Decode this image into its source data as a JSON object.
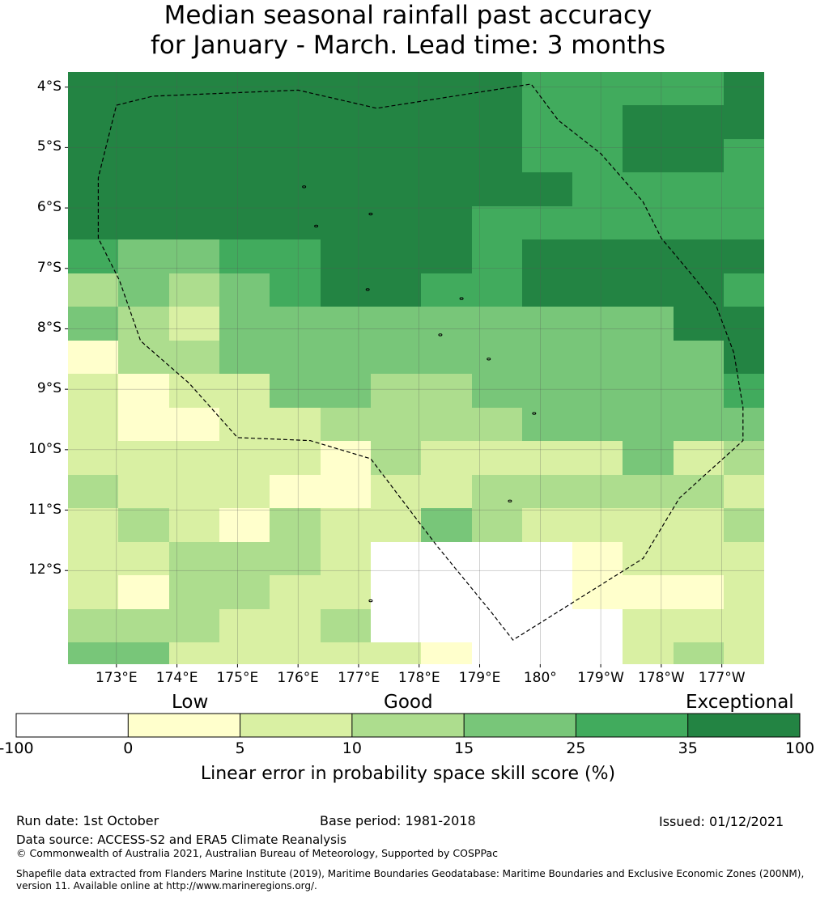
{
  "title": {
    "line1": "Median seasonal rainfall past accuracy",
    "line2": "for January - March. Lead time: 3 months"
  },
  "map": {
    "lat_labels": [
      "4°S",
      "5°S",
      "6°S",
      "7°S",
      "8°S",
      "9°S",
      "10°S",
      "11°S",
      "12°S"
    ],
    "lat_values": [
      -4,
      -5,
      -6,
      -7,
      -8,
      -9,
      -10,
      -11,
      -12
    ],
    "lon_labels": [
      "173°E",
      "174°E",
      "175°E",
      "176°E",
      "177°E",
      "178°E",
      "179°E",
      "180°",
      "179°W",
      "178°W",
      "177°W"
    ],
    "lon_values": [
      173,
      174,
      175,
      176,
      177,
      178,
      179,
      180,
      181,
      182,
      183
    ],
    "extent": {
      "lon_min": 172.2,
      "lon_max": 183.7,
      "lat_max": -3.75,
      "lat_min": -13.55
    },
    "cell_grid": {
      "lon0": 172.2,
      "lat0": -3.75,
      "dlon": 0.8333,
      "dlat": 0.5555,
      "cols": 14,
      "rows": 18,
      "class_rows": [
        "66666666655556",
        "66666666655666",
        "66666666655665",
        "66666666665555",
        "66666666555555",
        "54455666566666",
        "34345665566665",
        "43244444444466",
        "13344444444446",
        "21224433444445",
        "21122333344444",
        "22222132222423",
        "32221122333332",
        "23213224322223",
        "22333200001222",
        "21332200001112",
        "33322300000222",
        "44222221000232"
      ]
    },
    "eez_boundary_lonlat": [
      [
        173.0,
        -4.3
      ],
      [
        173.6,
        -4.15
      ],
      [
        176.0,
        -4.05
      ],
      [
        177.3,
        -4.35
      ],
      [
        179.85,
        -3.95
      ],
      [
        180.3,
        -4.55
      ],
      [
        181.0,
        -5.1
      ],
      [
        181.7,
        -5.9
      ],
      [
        182.0,
        -6.5
      ],
      [
        182.5,
        -7.1
      ],
      [
        182.9,
        -7.6
      ],
      [
        183.2,
        -8.4
      ],
      [
        183.35,
        -9.3
      ],
      [
        183.35,
        -9.85
      ],
      [
        182.3,
        -10.8
      ],
      [
        181.7,
        -11.8
      ],
      [
        179.55,
        -13.15
      ],
      [
        179.2,
        -12.7
      ],
      [
        178.3,
        -11.6
      ],
      [
        177.2,
        -10.15
      ],
      [
        176.2,
        -9.85
      ],
      [
        175.0,
        -9.8
      ],
      [
        174.2,
        -8.9
      ],
      [
        173.4,
        -8.2
      ],
      [
        173.05,
        -7.2
      ],
      [
        172.7,
        -6.5
      ],
      [
        172.7,
        -5.5
      ],
      [
        173.0,
        -4.3
      ]
    ],
    "islands_lonlat": [
      [
        176.1,
        -5.65
      ],
      [
        176.3,
        -6.3
      ],
      [
        177.2,
        -6.1
      ],
      [
        177.15,
        -7.35
      ],
      [
        178.7,
        -7.5
      ],
      [
        178.35,
        -8.1
      ],
      [
        179.15,
        -8.5
      ],
      [
        179.9,
        -9.4
      ],
      [
        179.5,
        -10.85
      ],
      [
        177.2,
        -12.5
      ]
    ]
  },
  "legend": {
    "categories": [
      "Low",
      "Good",
      "Exceptional"
    ],
    "ticks": [
      "-100",
      "0",
      "5",
      "10",
      "15",
      "25",
      "35",
      "100"
    ],
    "colors": [
      "#ffffff",
      "#ffffcc",
      "#d9f0a3",
      "#addd8e",
      "#78c679",
      "#41ab5d",
      "#238443"
    ],
    "axis_label": "Linear error in probability space skill score (%)"
  },
  "footer": {
    "run_date": "Run date: 1st October",
    "base_period": "Base period: 1981-2018",
    "issued": "Issued: 01/12/2021",
    "data_source": "Data source: ACCESS-S2 and ERA5 Climate Reanalysis",
    "copyright": "© Commonwealth of Australia 2021, Australian Bureau of Meteorology, Supported by COSPPac",
    "shapefile": "Shapefile data extracted from Flanders Marine Institute (2019), Maritime Boundaries Geodatabase: Maritime Boundaries and Exclusive Economic Zones (200NM), version 11. Available online at http://www.marineregions.org/."
  }
}
